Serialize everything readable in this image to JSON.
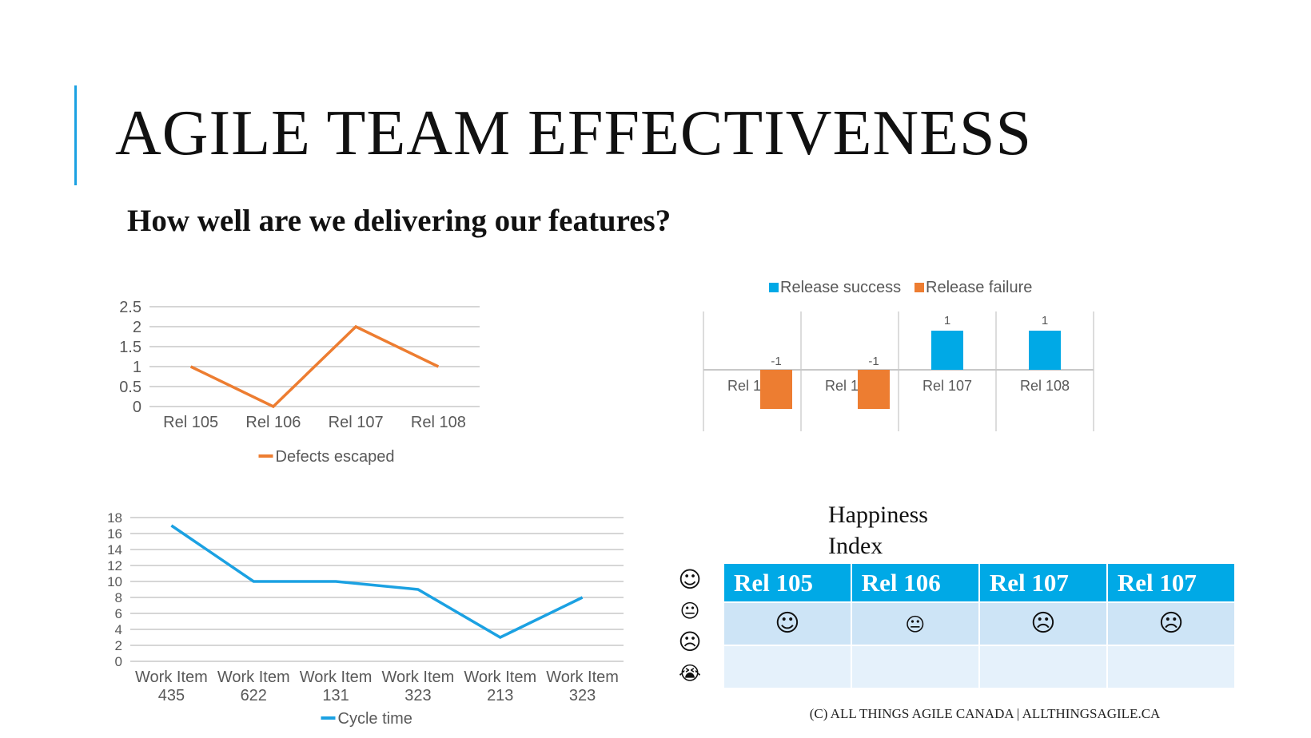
{
  "title": "AGILE TEAM EFFECTIVENESS",
  "subtitle": "How well are we delivering our features?",
  "colors": {
    "accent": "#1ba1e2",
    "orange": "#ed7d31",
    "blue": "#00a9e6"
  },
  "chart_data": [
    {
      "type": "line",
      "categories": [
        "Rel 105",
        "Rel 106",
        "Rel 107",
        "Rel 108"
      ],
      "series": [
        {
          "name": "Defects escaped",
          "values": [
            1,
            0,
            2,
            1
          ],
          "color": "#ed7d31"
        }
      ],
      "ylim": [
        0,
        2.5
      ],
      "yticks": [
        "0",
        "0.5",
        "1",
        "1.5",
        "2",
        "2.5"
      ],
      "grid": true,
      "legend": "bottom"
    },
    {
      "type": "bar",
      "categories": [
        "Rel 105",
        "Rel 106",
        "Rel 107",
        "Rel 108"
      ],
      "series": [
        {
          "name": "Release success",
          "values": [
            null,
            null,
            1,
            1
          ],
          "color": "#00a9e6"
        },
        {
          "name": "Release failure",
          "values": [
            -1,
            -1,
            null,
            null
          ],
          "color": "#ed7d31"
        }
      ],
      "ylim": [
        -1,
        1
      ],
      "data_labels": [
        "-1",
        "-1",
        "1",
        "1"
      ],
      "legend": "top"
    },
    {
      "type": "line",
      "categories": [
        "Work Item 435",
        "Work Item 622",
        "Work Item 131",
        "Work Item 323",
        "Work Item 213",
        "Work Item 323"
      ],
      "series": [
        {
          "name": "Cycle time",
          "values": [
            17,
            10,
            10,
            9,
            3,
            8
          ],
          "color": "#1ba1e2"
        }
      ],
      "ylim": [
        0,
        18
      ],
      "yticks": [
        "0",
        "2",
        "4",
        "6",
        "8",
        "10",
        "12",
        "14",
        "16",
        "18"
      ],
      "grid": true,
      "legend": "bottom"
    }
  ],
  "happiness": {
    "title_line1": "Happiness",
    "title_line2": "Index",
    "legend": [
      "☺",
      "😐",
      "☹",
      "😭"
    ],
    "headers": [
      "Rel 105",
      "Rel 106",
      "Rel 107",
      "Rel 107"
    ],
    "faces": [
      "☺",
      "😐",
      "☹",
      "☹"
    ]
  },
  "footer": "(C) ALL THINGS AGILE CANADA | ALLTHINGSAGILE.CA"
}
